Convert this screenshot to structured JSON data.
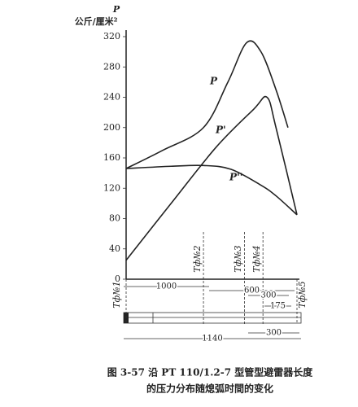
{
  "chart_data": {
    "type": "line",
    "y_label": "P",
    "y_unit": "公斤/厘米²",
    "ylim": [
      0,
      320
    ],
    "yticks": [
      0,
      40,
      80,
      120,
      160,
      200,
      240,
      280,
      320
    ],
    "xlim": [
      0,
      1140
    ],
    "series": [
      {
        "name": "P",
        "color": "#222222",
        "x": [
          0,
          244,
          516,
          679,
          804,
          900,
          1000,
          1080
        ],
        "values": [
          146,
          170,
          200,
          260,
          312,
          300,
          250,
          200
        ]
      },
      {
        "name": "P'",
        "color": "#222222",
        "x": [
          0,
          300,
          600,
          850,
          940,
          1000,
          1140
        ],
        "values": [
          25,
          100,
          174,
          224,
          240,
          200,
          85
        ]
      },
      {
        "name": "P''",
        "color": "#222222",
        "x": [
          0,
          300,
          516,
          700,
          900,
          1000,
          1140
        ],
        "values": [
          146,
          149,
          150,
          145,
          124,
          110,
          85
        ]
      }
    ],
    "markers": [
      {
        "label": "Tф№1",
        "x": 0
      },
      {
        "label": "Tф№2",
        "x": 516
      },
      {
        "label": "Tф№3",
        "x": 790
      },
      {
        "label": "Tф№4",
        "x": 913
      },
      {
        "label": "Tф№5",
        "x": 1140
      }
    ],
    "dimensions": [
      "1000",
      "600",
      "300",
      "175",
      "300",
      "1140"
    ],
    "caption": [
      "图 3-57  沿 PT 110/1.2-7 型管型避雷器长度",
      "的压力分布随熄弧时間的变化"
    ]
  }
}
